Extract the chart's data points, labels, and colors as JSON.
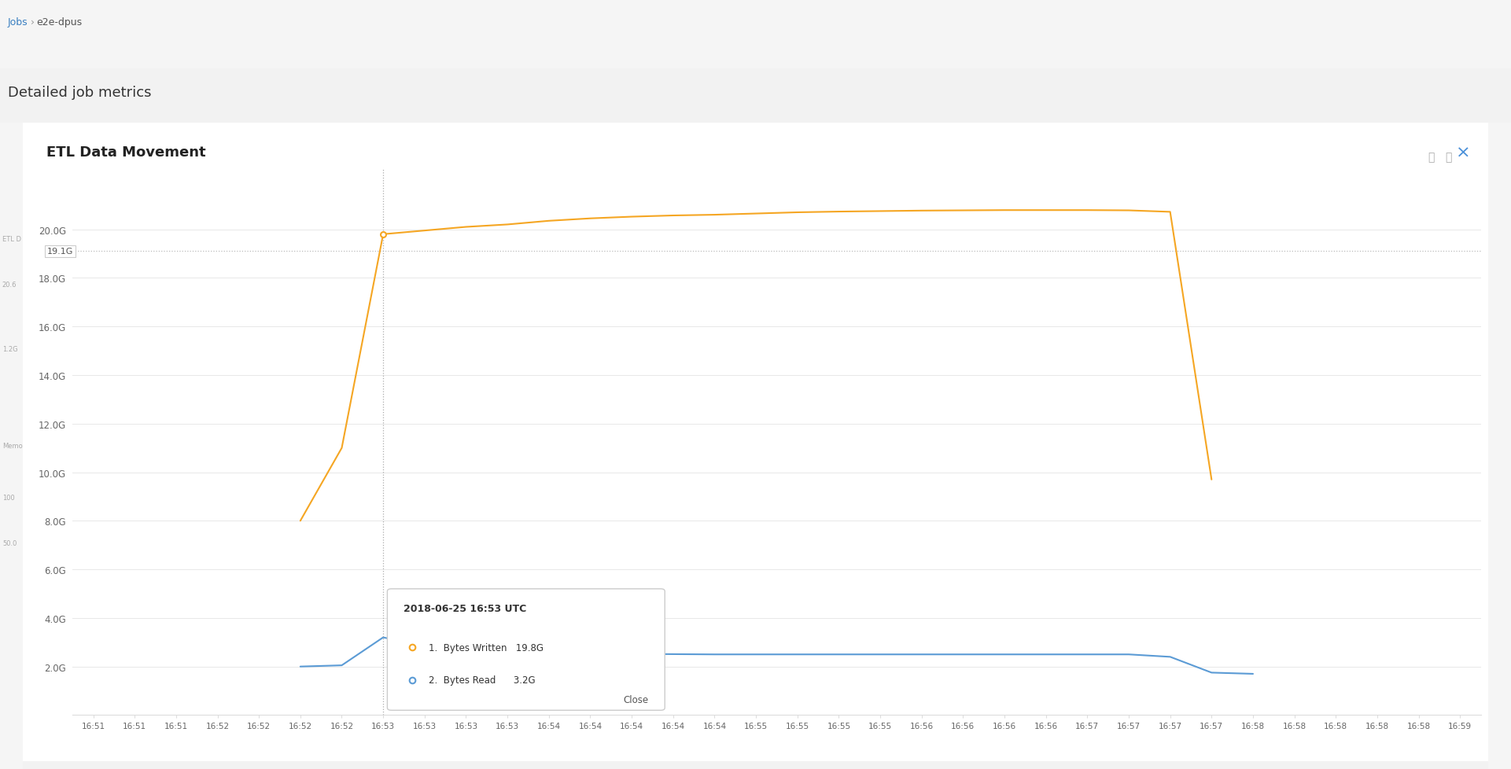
{
  "title": "ETL Data Movement",
  "page_breadcrumb_jobs": "Jobs",
  "page_breadcrumb_sep": " › ",
  "page_breadcrumb_page": "e2e-dpus",
  "page_subtitle": "Detailed job metrics",
  "bg_outer": "#f2f2f2",
  "bg_topbar": "#f5f5f5",
  "bg_card": "#ffffff",
  "bg_sidebar": "#f8f8f8",
  "orange_color": "#f5a623",
  "blue_color": "#5b9bd5",
  "grid_color": "#e8e8e8",
  "axis_color": "#dddddd",
  "label_color": "#666666",
  "title_color": "#222222",
  "crosshair_color": "#aaaaaa",
  "dotted_line_color": "#bbbbbb",
  "close_btn_color": "#4a90d9",
  "tooltip_border": "#cccccc",
  "orange_x": [
    5,
    6,
    7,
    8,
    9,
    10,
    11,
    12,
    13,
    14,
    15,
    16,
    17,
    18,
    19,
    20,
    21,
    22,
    23,
    24,
    25,
    26,
    27
  ],
  "orange_y": [
    8.0,
    11.0,
    19.8,
    19.95,
    20.1,
    20.2,
    20.35,
    20.45,
    20.52,
    20.57,
    20.6,
    20.65,
    20.7,
    20.73,
    20.75,
    20.77,
    20.78,
    20.79,
    20.79,
    20.79,
    20.78,
    20.72,
    9.7
  ],
  "blue_x": [
    5,
    6,
    7,
    8,
    9,
    10,
    11,
    12,
    13,
    14,
    15,
    16,
    17,
    18,
    19,
    20,
    21,
    22,
    23,
    24,
    25,
    26,
    27,
    28
  ],
  "blue_y": [
    2.0,
    2.05,
    3.2,
    2.85,
    2.7,
    2.62,
    2.57,
    2.54,
    2.52,
    2.51,
    2.5,
    2.5,
    2.5,
    2.5,
    2.5,
    2.5,
    2.5,
    2.5,
    2.5,
    2.5,
    2.5,
    2.4,
    1.75,
    1.7
  ],
  "xlim": [
    -0.5,
    33.5
  ],
  "ylim": [
    0,
    22.5
  ],
  "ytick_positions": [
    2.0,
    4.0,
    6.0,
    8.0,
    10.0,
    12.0,
    14.0,
    16.0,
    18.0,
    20.0
  ],
  "ytick_labels": [
    "2.0G",
    "4.0G",
    "6.0G",
    "8.0G",
    "10.0G",
    "12.0G",
    "14.0G",
    "16.0G",
    "18.0G",
    "20.0G"
  ],
  "dotted_y": 19.1,
  "dotted_label": "19.1G",
  "crosshair_x": 7,
  "n_ticks": 34,
  "minute_labels": [
    "16:51",
    "16:51",
    "16:51",
    "16:52",
    "16:52",
    "16:52",
    "16:52",
    "16:53",
    "16:53",
    "16:53",
    "16:53",
    "16:54",
    "16:54",
    "16:54",
    "16:54",
    "16:54",
    "16:55",
    "16:55",
    "16:55",
    "16:55",
    "16:56",
    "16:56",
    "16:56",
    "16:56",
    "16:57",
    "16:57",
    "16:57",
    "16:57",
    "16:58",
    "16:58",
    "16:58",
    "16:58",
    "16:58",
    "16:59"
  ],
  "tooltip_date": "2018-06-25 16:53 UTC",
  "tooltip_label1": "Bytes Written",
  "tooltip_value1": "19.8G",
  "tooltip_label2": "Bytes Read",
  "tooltip_value2": "3.2G"
}
